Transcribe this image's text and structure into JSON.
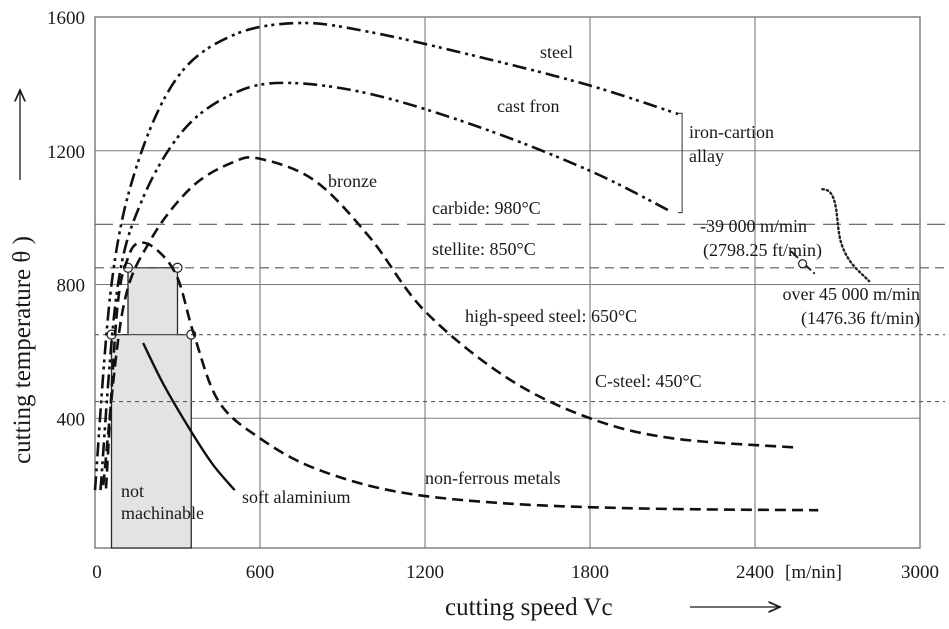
{
  "chart_data": {
    "type": "line",
    "title": "",
    "xlabel": "cutting speed Vc",
    "ylabel": "cutting temperature θ",
    "x_unit_label": "[m/nin]",
    "xlim": [
      0,
      3000
    ],
    "ylim": [
      0,
      1600
    ],
    "x_ticks": [
      "0",
      "600",
      "1200",
      "1800",
      "2400",
      "3000"
    ],
    "x_tick_values": [
      0,
      600,
      1200,
      1800,
      2400,
      3000
    ],
    "y_ticks": [
      "400",
      "800",
      "1200",
      "1600"
    ],
    "y_tick_values": [
      400,
      800,
      1200,
      1600
    ],
    "grid": true,
    "series": [
      {
        "name": "steel",
        "style": "dash-dot-dot",
        "x": [
          0,
          60,
          150,
          300,
          500,
          743,
          1000,
          1400,
          1800,
          2120
        ],
        "y": [
          185,
          800,
          1150,
          1420,
          1545,
          1582,
          1555,
          1480,
          1395,
          1310
        ]
      },
      {
        "name": "cast fron",
        "style": "dash-dot-dot",
        "x": [
          20,
          80,
          170,
          320,
          500,
          690,
          1000,
          1400,
          1800,
          2090
        ],
        "y": [
          185,
          780,
          1050,
          1260,
          1370,
          1403,
          1370,
          1270,
          1140,
          1020
        ]
      },
      {
        "name": "bronze",
        "style": "dash",
        "x": [
          30,
          100,
          200,
          350,
          500,
          600,
          800,
          1000,
          1200,
          1500,
          1800,
          2100,
          2540
        ],
        "y": [
          200,
          720,
          930,
          1090,
          1165,
          1176,
          1110,
          940,
          720,
          520,
          400,
          340,
          313
        ]
      },
      {
        "name": "non-ferrous metals",
        "style": "dash",
        "x": [
          40,
          80,
          120,
          163,
          230,
          300,
          360,
          450,
          600,
          800,
          1100,
          1500,
          2000,
          2630
        ],
        "y": [
          190,
          720,
          880,
          925,
          900,
          820,
          650,
          450,
          340,
          250,
          180,
          145,
          130,
          125
        ]
      },
      {
        "name": "soft alaminium",
        "style": "solid",
        "x": [
          175,
          250,
          350,
          430,
          508
        ],
        "y": [
          625,
          500,
          360,
          260,
          185
        ]
      }
    ],
    "reference_lines": [
      {
        "label": "carbide: 980°C",
        "value": 980
      },
      {
        "label": "stellite: 850°C",
        "value": 850
      },
      {
        "label": "high-speed steel: 650°C",
        "value": 650
      },
      {
        "label": "C-steel: 450°C",
        "value": 450
      }
    ],
    "annotations": [
      {
        "text": "iron-cartion",
        "line2": "allay"
      },
      {
        "text": "-39 000 m/min",
        "line2": "(2798.25 ft/min)"
      },
      {
        "text": "over 45 000 m/min",
        "line2": "(1476.36 ft/min)"
      },
      {
        "text": "not",
        "line2": "machinable"
      }
    ],
    "not_machinable_region": {
      "x_range_lower": [
        60,
        350
      ],
      "x_range_upper": [
        120,
        300
      ],
      "y_lower_top": 650,
      "y_upper_top": 850
    },
    "legend": "none"
  }
}
